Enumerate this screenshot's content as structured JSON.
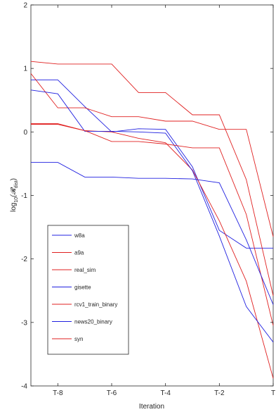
{
  "chart_data": {
    "type": "line",
    "title": "",
    "xlabel": "Iteration",
    "ylabel_prefix": "log",
    "ylabel_sub": "10",
    "ylabel_rest": "(𝓡",
    "ylabel_rest_sub": "dist",
    "ylabel_close": ")",
    "x": [
      -9,
      -8,
      -7,
      -6,
      -5,
      -4,
      -3,
      -2,
      -1,
      0
    ],
    "xticks": [
      -8,
      -6,
      -4,
      -2,
      0
    ],
    "xtick_labels": [
      "T-8",
      "T-6",
      "T-4",
      "T-2",
      "T"
    ],
    "xlim": [
      -9,
      0
    ],
    "ylim": [
      -4,
      2
    ],
    "yticks": [
      -4,
      -3,
      -2,
      -1,
      0,
      1,
      2
    ],
    "ytick_labels": [
      "-4",
      "-3",
      "-2",
      "-1",
      "0",
      "1",
      "2"
    ],
    "grid": false,
    "legend_position": "lower-left",
    "series": [
      {
        "name": "w8a",
        "color": "#2020e0",
        "values": [
          0.82,
          0.82,
          0.4,
          0.0,
          0.05,
          0.04,
          -0.55,
          -1.55,
          -1.83,
          -1.83
        ]
      },
      {
        "name": "a9a",
        "color": "#e02020",
        "values": [
          0.12,
          0.12,
          0.02,
          0.0,
          -0.1,
          -0.17,
          -0.6,
          -1.4,
          -2.35,
          -3.88
        ]
      },
      {
        "name": "real_sim",
        "color": "#e02020",
        "values": [
          0.92,
          0.38,
          0.38,
          0.24,
          0.24,
          0.17,
          0.17,
          0.04,
          0.04,
          -1.65
        ]
      },
      {
        "name": "gisette",
        "color": "#2020e0",
        "values": [
          0.66,
          0.6,
          0.01,
          0.01,
          0.0,
          -0.02,
          -0.61,
          -1.64,
          -2.75,
          -3.31
        ]
      },
      {
        "name": "rcv1_train_binary",
        "color": "#e02020",
        "values": [
          0.13,
          0.13,
          0.02,
          -0.15,
          -0.15,
          -0.19,
          -0.25,
          -0.25,
          -1.3,
          -3.05
        ]
      },
      {
        "name": "news20_binary",
        "color": "#2020e0",
        "values": [
          -0.48,
          -0.48,
          -0.71,
          -0.71,
          -0.73,
          -0.73,
          -0.74,
          -0.8,
          -1.7,
          -2.72
        ]
      },
      {
        "name": "syn",
        "color": "#e02020",
        "values": [
          1.11,
          1.07,
          1.07,
          1.07,
          0.62,
          0.62,
          0.27,
          0.27,
          -0.75,
          -2.58
        ]
      }
    ]
  }
}
